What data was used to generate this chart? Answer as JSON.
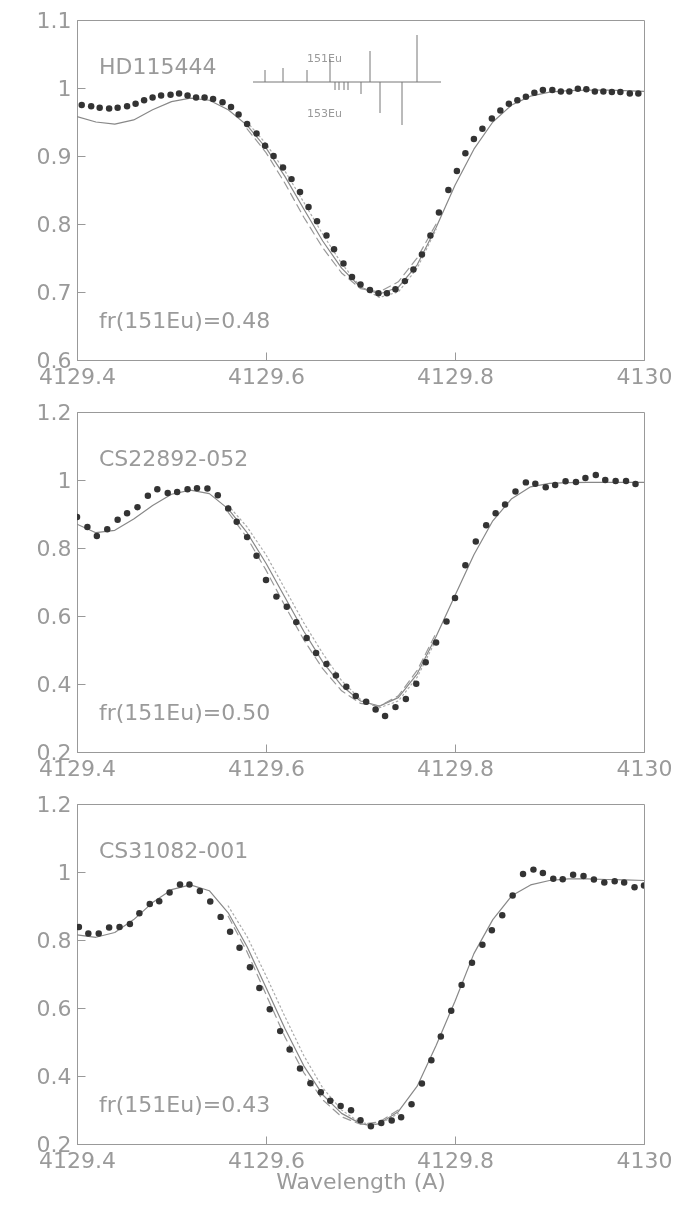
{
  "chart_data": [
    {
      "type": "scatter",
      "grid": false,
      "xlim": [
        4129.4,
        4130
      ],
      "xticks": [
        4129.4,
        4129.6,
        4129.8,
        4130
      ],
      "ylim": [
        0.6,
        1.1
      ],
      "yticks": [
        0.6,
        0.7,
        0.8,
        0.9,
        1,
        1.1
      ],
      "annotations": [
        "HD115444",
        "fr(151Eu)=0.48",
        "151Eu",
        "153Eu"
      ],
      "series": [
        {
          "marker": "circle",
          "color": "#333333",
          "x": [
            4129.405,
            4129.415,
            4129.424,
            4129.434,
            4129.443,
            4129.453,
            4129.462,
            4129.471,
            4129.48,
            4129.489,
            4129.499,
            4129.508,
            4129.517,
            4129.526,
            4129.535,
            4129.544,
            4129.554,
            4129.563,
            4129.571,
            4129.58,
            4129.59,
            4129.599,
            4129.608,
            4129.618,
            4129.627,
            4129.636,
            4129.645,
            4129.654,
            4129.664,
            4129.672,
            4129.682,
            4129.691,
            4129.7,
            4129.71,
            4129.719,
            4129.728,
            4129.737,
            4129.747,
            4129.756,
            4129.765,
            4129.774,
            4129.783,
            4129.793,
            4129.802,
            4129.811,
            4129.82,
            4129.829,
            4129.839,
            4129.848,
            4129.857,
            4129.866,
            4129.875,
            4129.884,
            4129.893,
            4129.903,
            4129.912,
            4129.921,
            4129.93,
            4129.939,
            4129.948,
            4129.957,
            4129.966,
            4129.975,
            4129.985,
            4129.994
          ],
          "values": [
            0.975,
            0.973,
            0.971,
            0.97,
            0.971,
            0.973,
            0.977,
            0.982,
            0.986,
            0.989,
            0.99,
            0.992,
            0.989,
            0.986,
            0.986,
            0.984,
            0.979,
            0.972,
            0.961,
            0.947,
            0.933,
            0.915,
            0.9,
            0.883,
            0.866,
            0.847,
            0.825,
            0.804,
            0.783,
            0.763,
            0.742,
            0.722,
            0.711,
            0.703,
            0.698,
            0.698,
            0.704,
            0.716,
            0.733,
            0.755,
            0.783,
            0.817,
            0.85,
            0.878,
            0.904,
            0.925,
            0.94,
            0.955,
            0.967,
            0.977,
            0.982,
            0.987,
            0.993,
            0.997,
            0.997,
            0.995,
            0.995,
            0.999,
            0.998,
            0.995,
            0.995,
            0.994,
            0.994,
            0.992,
            0.992
          ]
        },
        {
          "type": "line",
          "line_style": "solid",
          "color": "#888888",
          "x": [
            4129.4,
            4129.42,
            4129.44,
            4129.46,
            4129.48,
            4129.5,
            4129.52,
            4129.54,
            4129.56,
            4129.58,
            4129.6,
            4129.62,
            4129.64,
            4129.66,
            4129.68,
            4129.7,
            4129.72,
            4129.74,
            4129.76,
            4129.78,
            4129.8,
            4129.82,
            4129.84,
            4129.86,
            4129.88,
            4129.9,
            4129.92,
            4129.94,
            4129.96,
            4129.98,
            4130
          ],
          "values": [
            0.958,
            0.95,
            0.947,
            0.953,
            0.968,
            0.98,
            0.985,
            0.982,
            0.968,
            0.945,
            0.912,
            0.87,
            0.822,
            0.775,
            0.735,
            0.707,
            0.697,
            0.707,
            0.74,
            0.795,
            0.857,
            0.91,
            0.95,
            0.975,
            0.988,
            0.994,
            0.996,
            0.997,
            0.997,
            0.996,
            0.995
          ]
        },
        {
          "type": "line",
          "line_style": "dashed",
          "color": "#999999",
          "x": [
            4129.58,
            4129.6,
            4129.62,
            4129.64,
            4129.66,
            4129.68,
            4129.7,
            4129.72,
            4129.74,
            4129.76,
            4129.78
          ],
          "values": [
            0.94,
            0.905,
            0.86,
            0.81,
            0.765,
            0.728,
            0.705,
            0.7,
            0.715,
            0.75,
            0.8
          ]
        },
        {
          "type": "line",
          "line_style": "dotted",
          "color": "#aaaaaa",
          "x": [
            4129.58,
            4129.6,
            4129.62,
            4129.64,
            4129.66,
            4129.68,
            4129.7,
            4129.72,
            4129.74,
            4129.76,
            4129.78
          ],
          "values": [
            0.95,
            0.918,
            0.878,
            0.832,
            0.785,
            0.742,
            0.708,
            0.692,
            0.7,
            0.735,
            0.792
          ]
        }
      ]
    },
    {
      "type": "scatter",
      "grid": false,
      "xlim": [
        4129.4,
        4130
      ],
      "xticks": [
        4129.4,
        4129.6,
        4129.8,
        4130
      ],
      "ylim": [
        0.2,
        1.2
      ],
      "yticks": [
        0.2,
        0.4,
        0.6,
        0.8,
        1,
        1.2
      ],
      "annotations": [
        "CS22892-052",
        "fr(151Eu)=0.50"
      ],
      "series": [
        {
          "marker": "circle",
          "color": "#333333",
          "x": [
            4129.4,
            4129.411,
            4129.421,
            4129.432,
            4129.443,
            4129.453,
            4129.464,
            4129.475,
            4129.485,
            4129.496,
            4129.506,
            4129.517,
            4129.527,
            4129.538,
            4129.549,
            4129.56,
            4129.569,
            4129.58,
            4129.59,
            4129.6,
            4129.611,
            4129.622,
            4129.632,
            4129.643,
            4129.653,
            4129.664,
            4129.674,
            4129.685,
            4129.695,
            4129.706,
            4129.716,
            4129.726,
            4129.737,
            4129.748,
            4129.759,
            4129.769,
            4129.78,
            4129.791,
            4129.8,
            4129.811,
            4129.822,
            4129.833,
            4129.843,
            4129.853,
            4129.864,
            4129.875,
            4129.885,
            4129.896,
            4129.906,
            4129.917,
            4129.928,
            4129.938,
            4129.949,
            4129.959,
            4129.97,
            4129.981,
            4129.991
          ],
          "values": [
            0.891,
            0.862,
            0.835,
            0.855,
            0.883,
            0.902,
            0.92,
            0.954,
            0.973,
            0.962,
            0.965,
            0.973,
            0.976,
            0.975,
            0.955,
            0.916,
            0.877,
            0.832,
            0.777,
            0.706,
            0.657,
            0.627,
            0.582,
            0.535,
            0.491,
            0.459,
            0.425,
            0.392,
            0.365,
            0.348,
            0.325,
            0.306,
            0.332,
            0.356,
            0.401,
            0.464,
            0.522,
            0.584,
            0.653,
            0.749,
            0.819,
            0.867,
            0.902,
            0.928,
            0.966,
            0.993,
            0.989,
            0.979,
            0.985,
            0.996,
            0.994,
            1.006,
            1.015,
            1,
            0.997,
            0.997,
            0.988
          ]
        },
        {
          "type": "line",
          "line_style": "solid",
          "color": "#888888",
          "x": [
            4129.4,
            4129.42,
            4129.44,
            4129.46,
            4129.48,
            4129.5,
            4129.52,
            4129.54,
            4129.56,
            4129.58,
            4129.6,
            4129.62,
            4129.64,
            4129.66,
            4129.68,
            4129.7,
            4129.72,
            4129.74,
            4129.76,
            4129.78,
            4129.8,
            4129.82,
            4129.84,
            4129.86,
            4129.88,
            4129.9,
            4129.92,
            4129.94,
            4129.96,
            4129.98,
            4130
          ],
          "values": [
            0.87,
            0.845,
            0.852,
            0.885,
            0.925,
            0.958,
            0.97,
            0.96,
            0.915,
            0.845,
            0.755,
            0.655,
            0.555,
            0.465,
            0.395,
            0.35,
            0.335,
            0.36,
            0.43,
            0.54,
            0.66,
            0.78,
            0.88,
            0.945,
            0.98,
            0.99,
            0.992,
            0.993,
            0.993,
            0.993,
            0.993
          ]
        },
        {
          "type": "line",
          "line_style": "dashed",
          "color": "#999999",
          "x": [
            4129.56,
            4129.58,
            4129.6,
            4129.62,
            4129.64,
            4129.66,
            4129.68,
            4129.7,
            4129.72,
            4129.74,
            4129.76,
            4129.78
          ],
          "values": [
            0.905,
            0.83,
            0.735,
            0.63,
            0.53,
            0.445,
            0.38,
            0.343,
            0.335,
            0.365,
            0.44,
            0.55
          ]
        },
        {
          "type": "line",
          "line_style": "dotted",
          "color": "#aaaaaa",
          "x": [
            4129.56,
            4129.58,
            4129.6,
            4129.62,
            4129.64,
            4129.66,
            4129.68,
            4129.7,
            4129.72,
            4129.74,
            4129.76,
            4129.78
          ],
          "values": [
            0.925,
            0.862,
            0.78,
            0.68,
            0.58,
            0.49,
            0.41,
            0.355,
            0.33,
            0.35,
            0.42,
            0.53
          ]
        }
      ]
    },
    {
      "type": "scatter",
      "grid": false,
      "xlim": [
        4129.4,
        4130
      ],
      "xticks": [
        4129.4,
        4129.6,
        4129.8,
        4130
      ],
      "ylim": [
        0.2,
        1.2
      ],
      "yticks": [
        0.2,
        0.4,
        0.6,
        0.8,
        1,
        1.2
      ],
      "xlabel": "Wavelength (A)",
      "annotations": [
        "CS31082-001",
        "fr(151Eu)=0.43"
      ],
      "series": [
        {
          "marker": "circle",
          "color": "#333333",
          "x": [
            4129.402,
            4129.412,
            4129.423,
            4129.434,
            4129.445,
            4129.456,
            4129.466,
            4129.477,
            4129.487,
            4129.498,
            4129.509,
            4129.519,
            4129.53,
            4129.541,
            4129.552,
            4129.562,
            4129.572,
            4129.583,
            4129.593,
            4129.604,
            4129.615,
            4129.625,
            4129.636,
            4129.647,
            4129.658,
            4129.668,
            4129.679,
            4129.69,
            4129.7,
            4129.711,
            4129.722,
            4129.733,
            4129.743,
            4129.754,
            4129.765,
            4129.775,
            4129.785,
            4129.796,
            4129.807,
            4129.818,
            4129.829,
            4129.839,
            4129.85,
            4129.861,
            4129.872,
            4129.883,
            4129.893,
            4129.904,
            4129.914,
            4129.925,
            4129.936,
            4129.947,
            4129.958,
            4129.969,
            4129.979,
            4129.99,
            4130
          ],
          "values": [
            0.838,
            0.819,
            0.819,
            0.837,
            0.838,
            0.847,
            0.879,
            0.906,
            0.914,
            0.94,
            0.963,
            0.963,
            0.944,
            0.913,
            0.868,
            0.824,
            0.777,
            0.72,
            0.659,
            0.596,
            0.532,
            0.478,
            0.422,
            0.379,
            0.352,
            0.327,
            0.312,
            0.299,
            0.27,
            0.252,
            0.262,
            0.269,
            0.279,
            0.317,
            0.378,
            0.446,
            0.516,
            0.592,
            0.668,
            0.733,
            0.786,
            0.829,
            0.873,
            0.931,
            0.994,
            1.007,
            0.997,
            0.98,
            0.979,
            0.992,
            0.988,
            0.978,
            0.969,
            0.973,
            0.969,
            0.955,
            0.96
          ]
        },
        {
          "type": "line",
          "line_style": "solid",
          "color": "#888888",
          "x": [
            4129.4,
            4129.42,
            4129.44,
            4129.46,
            4129.48,
            4129.5,
            4129.52,
            4129.54,
            4129.56,
            4129.58,
            4129.6,
            4129.62,
            4129.64,
            4129.66,
            4129.68,
            4129.7,
            4129.71,
            4129.72,
            4129.74,
            4129.76,
            4129.78,
            4129.8,
            4129.82,
            4129.84,
            4129.86,
            4129.88,
            4129.9,
            4129.92,
            4129.94,
            4129.96,
            4129.98,
            4130
          ],
          "values": [
            0.815,
            0.808,
            0.822,
            0.86,
            0.91,
            0.948,
            0.962,
            0.945,
            0.88,
            0.78,
            0.66,
            0.54,
            0.43,
            0.345,
            0.29,
            0.26,
            0.255,
            0.26,
            0.295,
            0.37,
            0.49,
            0.62,
            0.76,
            0.86,
            0.93,
            0.962,
            0.975,
            0.98,
            0.98,
            0.978,
            0.977,
            0.975
          ]
        },
        {
          "type": "line",
          "line_style": "dashed",
          "color": "#999999",
          "x": [
            4129.56,
            4129.58,
            4129.6,
            4129.62,
            4129.64,
            4129.66,
            4129.68,
            4129.7,
            4129.72,
            4129.74
          ],
          "values": [
            0.87,
            0.765,
            0.64,
            0.515,
            0.41,
            0.33,
            0.28,
            0.258,
            0.265,
            0.3
          ]
        },
        {
          "type": "line",
          "line_style": "dotted",
          "color": "#aaaaaa",
          "x": [
            4129.56,
            4129.58,
            4129.6,
            4129.62,
            4129.64,
            4129.66,
            4129.68,
            4129.7,
            4129.72,
            4129.74
          ],
          "values": [
            0.9,
            0.81,
            0.695,
            0.575,
            0.46,
            0.365,
            0.3,
            0.262,
            0.258,
            0.29
          ]
        }
      ]
    }
  ]
}
